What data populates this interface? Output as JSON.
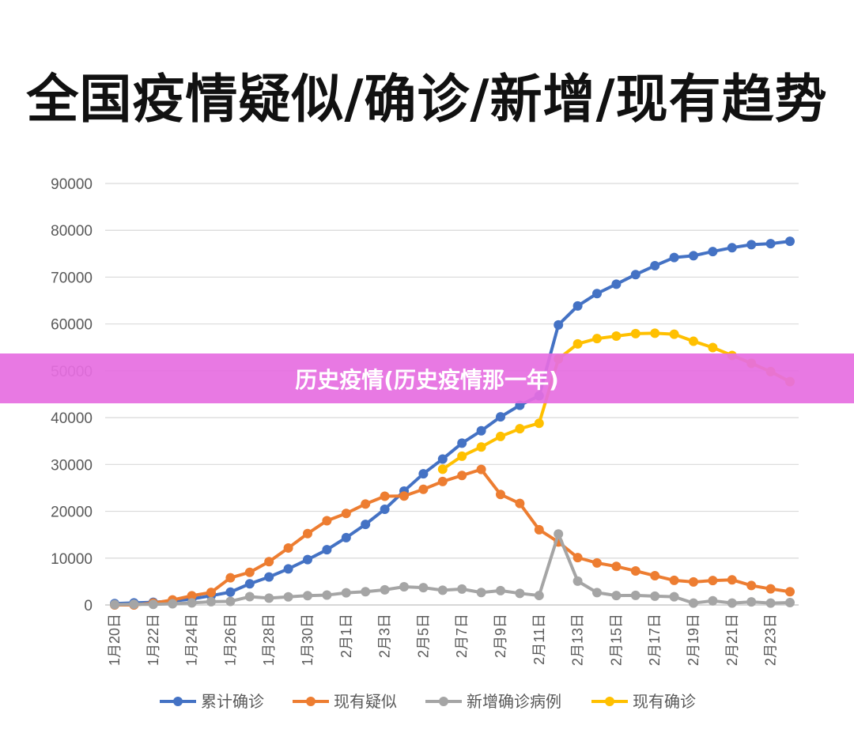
{
  "page": {
    "title": "全国疫情疑似/确诊/新增/现有趋势",
    "banner": "历史疫情(历史疫情那一年)"
  },
  "chart_data": {
    "type": "line",
    "title": "全国疫情疑似/确诊/新增/现有趋势",
    "ylim": [
      0,
      90000
    ],
    "yticks": [
      0,
      10000,
      20000,
      30000,
      40000,
      50000,
      60000,
      70000,
      80000,
      90000
    ],
    "x_tick_labels": [
      "1月20日",
      "1月22日",
      "1月24日",
      "1月26日",
      "1月28日",
      "1月30日",
      "2月1日",
      "2月3日",
      "2月5日",
      "2月7日",
      "2月9日",
      "2月11日",
      "2月13日",
      "2月15日",
      "2月17日",
      "2月19日",
      "2月21日",
      "2月23日"
    ],
    "x": [
      "1月20日",
      "1月21日",
      "1月22日",
      "1月23日",
      "1月24日",
      "1月25日",
      "1月26日",
      "1月27日",
      "1月28日",
      "1月29日",
      "1月30日",
      "1月31日",
      "2月1日",
      "2月2日",
      "2月3日",
      "2月4日",
      "2月5日",
      "2月6日",
      "2月7日",
      "2月8日",
      "2月9日",
      "2月10日",
      "2月11日",
      "2月12日",
      "2月13日",
      "2月14日",
      "2月15日",
      "2月16日",
      "2月17日",
      "2月18日",
      "2月19日",
      "2月20日",
      "2月21日",
      "2月22日",
      "2月23日",
      "2月24日"
    ],
    "grid": true,
    "legend_position": "bottom",
    "series": [
      {
        "name": "累计确诊",
        "color": "#4472c4",
        "values": [
          291,
          440,
          571,
          830,
          1287,
          1975,
          2744,
          4515,
          5974,
          7711,
          9692,
          11791,
          14380,
          17205,
          20438,
          24324,
          28018,
          31161,
          34546,
          37198,
          40171,
          42638,
          44653,
          59804,
          63851,
          66492,
          68500,
          70548,
          72436,
          74185,
          74576,
          75465,
          76288,
          76936,
          77150,
          77658
        ]
      },
      {
        "name": "现有疑似",
        "color": "#ed7d31",
        "values": [
          0,
          0,
          393,
          1072,
          1965,
          2684,
          5794,
          6973,
          9239,
          12167,
          15238,
          17988,
          19544,
          21558,
          23214,
          23260,
          24702,
          26359,
          27657,
          28942,
          23589,
          21675,
          16067,
          13435,
          10109,
          8969,
          8228,
          7264,
          6242,
          5248,
          4922,
          5206,
          5365,
          4148,
          3434,
          2824
        ]
      },
      {
        "name": "新增确诊病例",
        "color": "#a5a5a5",
        "values": [
          77,
          149,
          131,
          259,
          444,
          688,
          769,
          1771,
          1459,
          1737,
          1982,
          2102,
          2590,
          2829,
          3235,
          3887,
          3694,
          3143,
          3399,
          2656,
          3062,
          2478,
          2015,
          15152,
          5090,
          2641,
          2009,
          2048,
          1886,
          1749,
          394,
          889,
          397,
          648,
          409,
          508
        ]
      },
      {
        "name": "现有确诊",
        "color": "#ffc000",
        "values": [
          null,
          null,
          null,
          null,
          null,
          null,
          null,
          null,
          null,
          null,
          null,
          null,
          null,
          null,
          null,
          null,
          null,
          28985,
          31774,
          33738,
          35982,
          37626,
          38800,
          52526,
          55748,
          56873,
          57416,
          57934,
          58016,
          57805,
          56303,
          54965,
          53284,
          51606,
          49824,
          47672
        ]
      }
    ]
  }
}
